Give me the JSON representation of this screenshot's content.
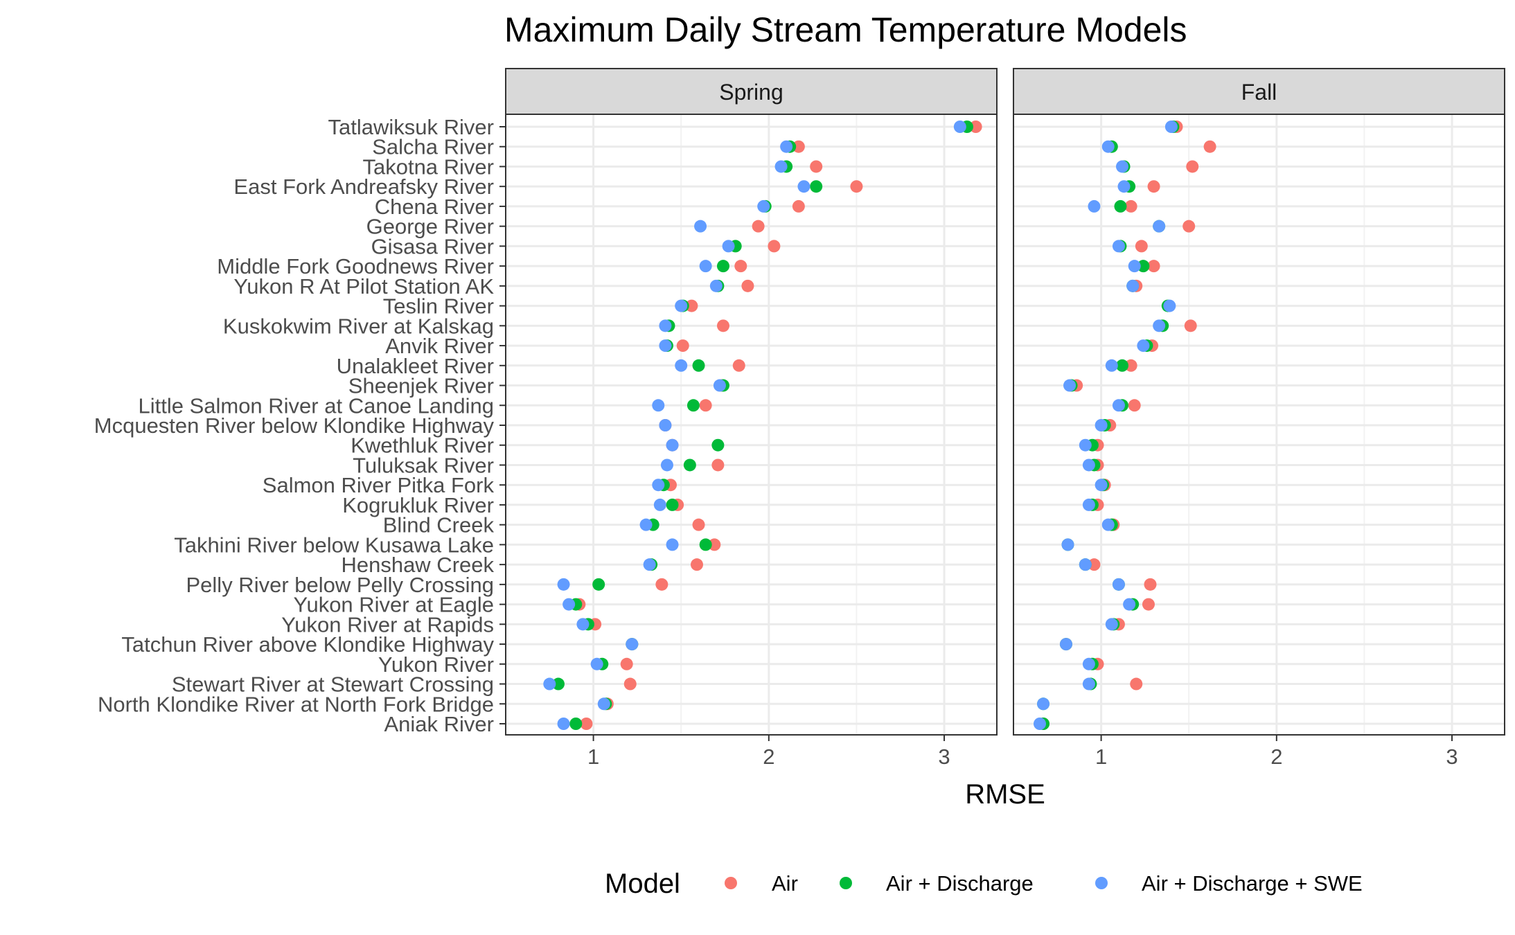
{
  "chart_data": {
    "type": "scatter",
    "title": "Maximum Daily Stream Temperature Models",
    "xlabel": "RMSE",
    "ylabel": "",
    "xlim": [
      0.5,
      3.3
    ],
    "xticks": [
      1,
      2,
      3
    ],
    "grid": true,
    "legend": {
      "title": "Model",
      "position": "bottom"
    },
    "facets": [
      "Spring",
      "Fall"
    ],
    "categories": [
      "Tatlawiksuk River",
      "Salcha River",
      "Takotna River",
      "East Fork Andreafsky River",
      "Chena River",
      "George River",
      "Gisasa River",
      "Middle Fork Goodnews River",
      "Yukon R At Pilot Station AK",
      "Teslin River",
      "Kuskokwim River at Kalskag",
      "Anvik River",
      "Unalakleet River",
      "Sheenjek River",
      "Little Salmon River at Canoe Landing",
      "Mcquesten River below Klondike Highway",
      "Kwethluk River",
      "Tuluksak River",
      "Salmon River Pitka Fork",
      "Kogrukluk River",
      "Blind Creek",
      "Takhini River below Kusawa Lake",
      "Henshaw Creek",
      "Pelly River below Pelly Crossing",
      "Yukon River at Eagle",
      "Yukon River at Rapids",
      "Tatchun River above Klondike Highway",
      "Yukon River",
      "Stewart River at Stewart Crossing",
      "North Klondike River at North Fork Bridge",
      "Aniak River"
    ],
    "series": [
      {
        "name": "Air",
        "color": "#F8766D",
        "Spring": [
          3.18,
          2.17,
          2.27,
          2.5,
          2.17,
          1.94,
          2.03,
          1.84,
          1.88,
          1.56,
          1.74,
          1.51,
          1.83,
          1.73,
          1.64,
          1.41,
          1.45,
          1.71,
          1.44,
          1.48,
          1.6,
          1.69,
          1.59,
          1.39,
          0.92,
          1.01,
          1.22,
          1.19,
          1.21,
          1.08,
          0.96
        ],
        "Fall": [
          1.43,
          1.62,
          1.52,
          1.3,
          1.17,
          1.5,
          1.23,
          1.3,
          1.2,
          null,
          1.51,
          1.29,
          1.17,
          0.86,
          1.19,
          1.05,
          0.98,
          0.98,
          1.02,
          0.98,
          1.07,
          null,
          0.96,
          1.28,
          1.27,
          1.1,
          0.8,
          0.98,
          1.2,
          null,
          0.67
        ]
      },
      {
        "name": "Air + Discharge",
        "color": "#00BA38",
        "Spring": [
          3.13,
          2.12,
          2.1,
          2.27,
          1.98,
          null,
          1.81,
          1.74,
          1.71,
          1.51,
          1.43,
          1.42,
          1.6,
          1.74,
          1.57,
          null,
          1.71,
          1.55,
          1.4,
          1.45,
          1.34,
          1.64,
          1.33,
          1.03,
          0.9,
          0.97,
          1.22,
          1.05,
          0.8,
          1.07,
          0.9
        ],
        "Fall": [
          1.41,
          1.06,
          1.13,
          1.16,
          1.11,
          1.33,
          1.11,
          1.24,
          1.18,
          1.38,
          1.35,
          1.26,
          1.12,
          0.83,
          1.12,
          1.02,
          0.95,
          0.96,
          1.01,
          0.95,
          1.06,
          0.81,
          0.91,
          1.1,
          1.18,
          1.07,
          0.8,
          0.95,
          0.94,
          0.67,
          0.67
        ]
      },
      {
        "name": "Air + Discharge + SWE",
        "color": "#619CFF",
        "Spring": [
          3.09,
          2.1,
          2.07,
          2.2,
          1.97,
          1.61,
          1.77,
          1.64,
          1.7,
          1.5,
          1.41,
          1.41,
          1.5,
          1.72,
          1.37,
          1.41,
          1.45,
          1.42,
          1.37,
          1.38,
          1.3,
          1.45,
          1.32,
          0.83,
          0.86,
          0.94,
          1.22,
          1.02,
          0.75,
          1.06,
          0.83
        ],
        "Fall": [
          1.4,
          1.04,
          1.12,
          1.13,
          0.96,
          1.33,
          1.1,
          1.19,
          1.18,
          1.39,
          1.33,
          1.24,
          1.06,
          0.82,
          1.1,
          1.0,
          0.91,
          0.93,
          1.0,
          0.93,
          1.04,
          0.81,
          0.91,
          1.1,
          1.16,
          1.06,
          0.8,
          0.93,
          0.93,
          0.67,
          0.65
        ]
      }
    ]
  }
}
